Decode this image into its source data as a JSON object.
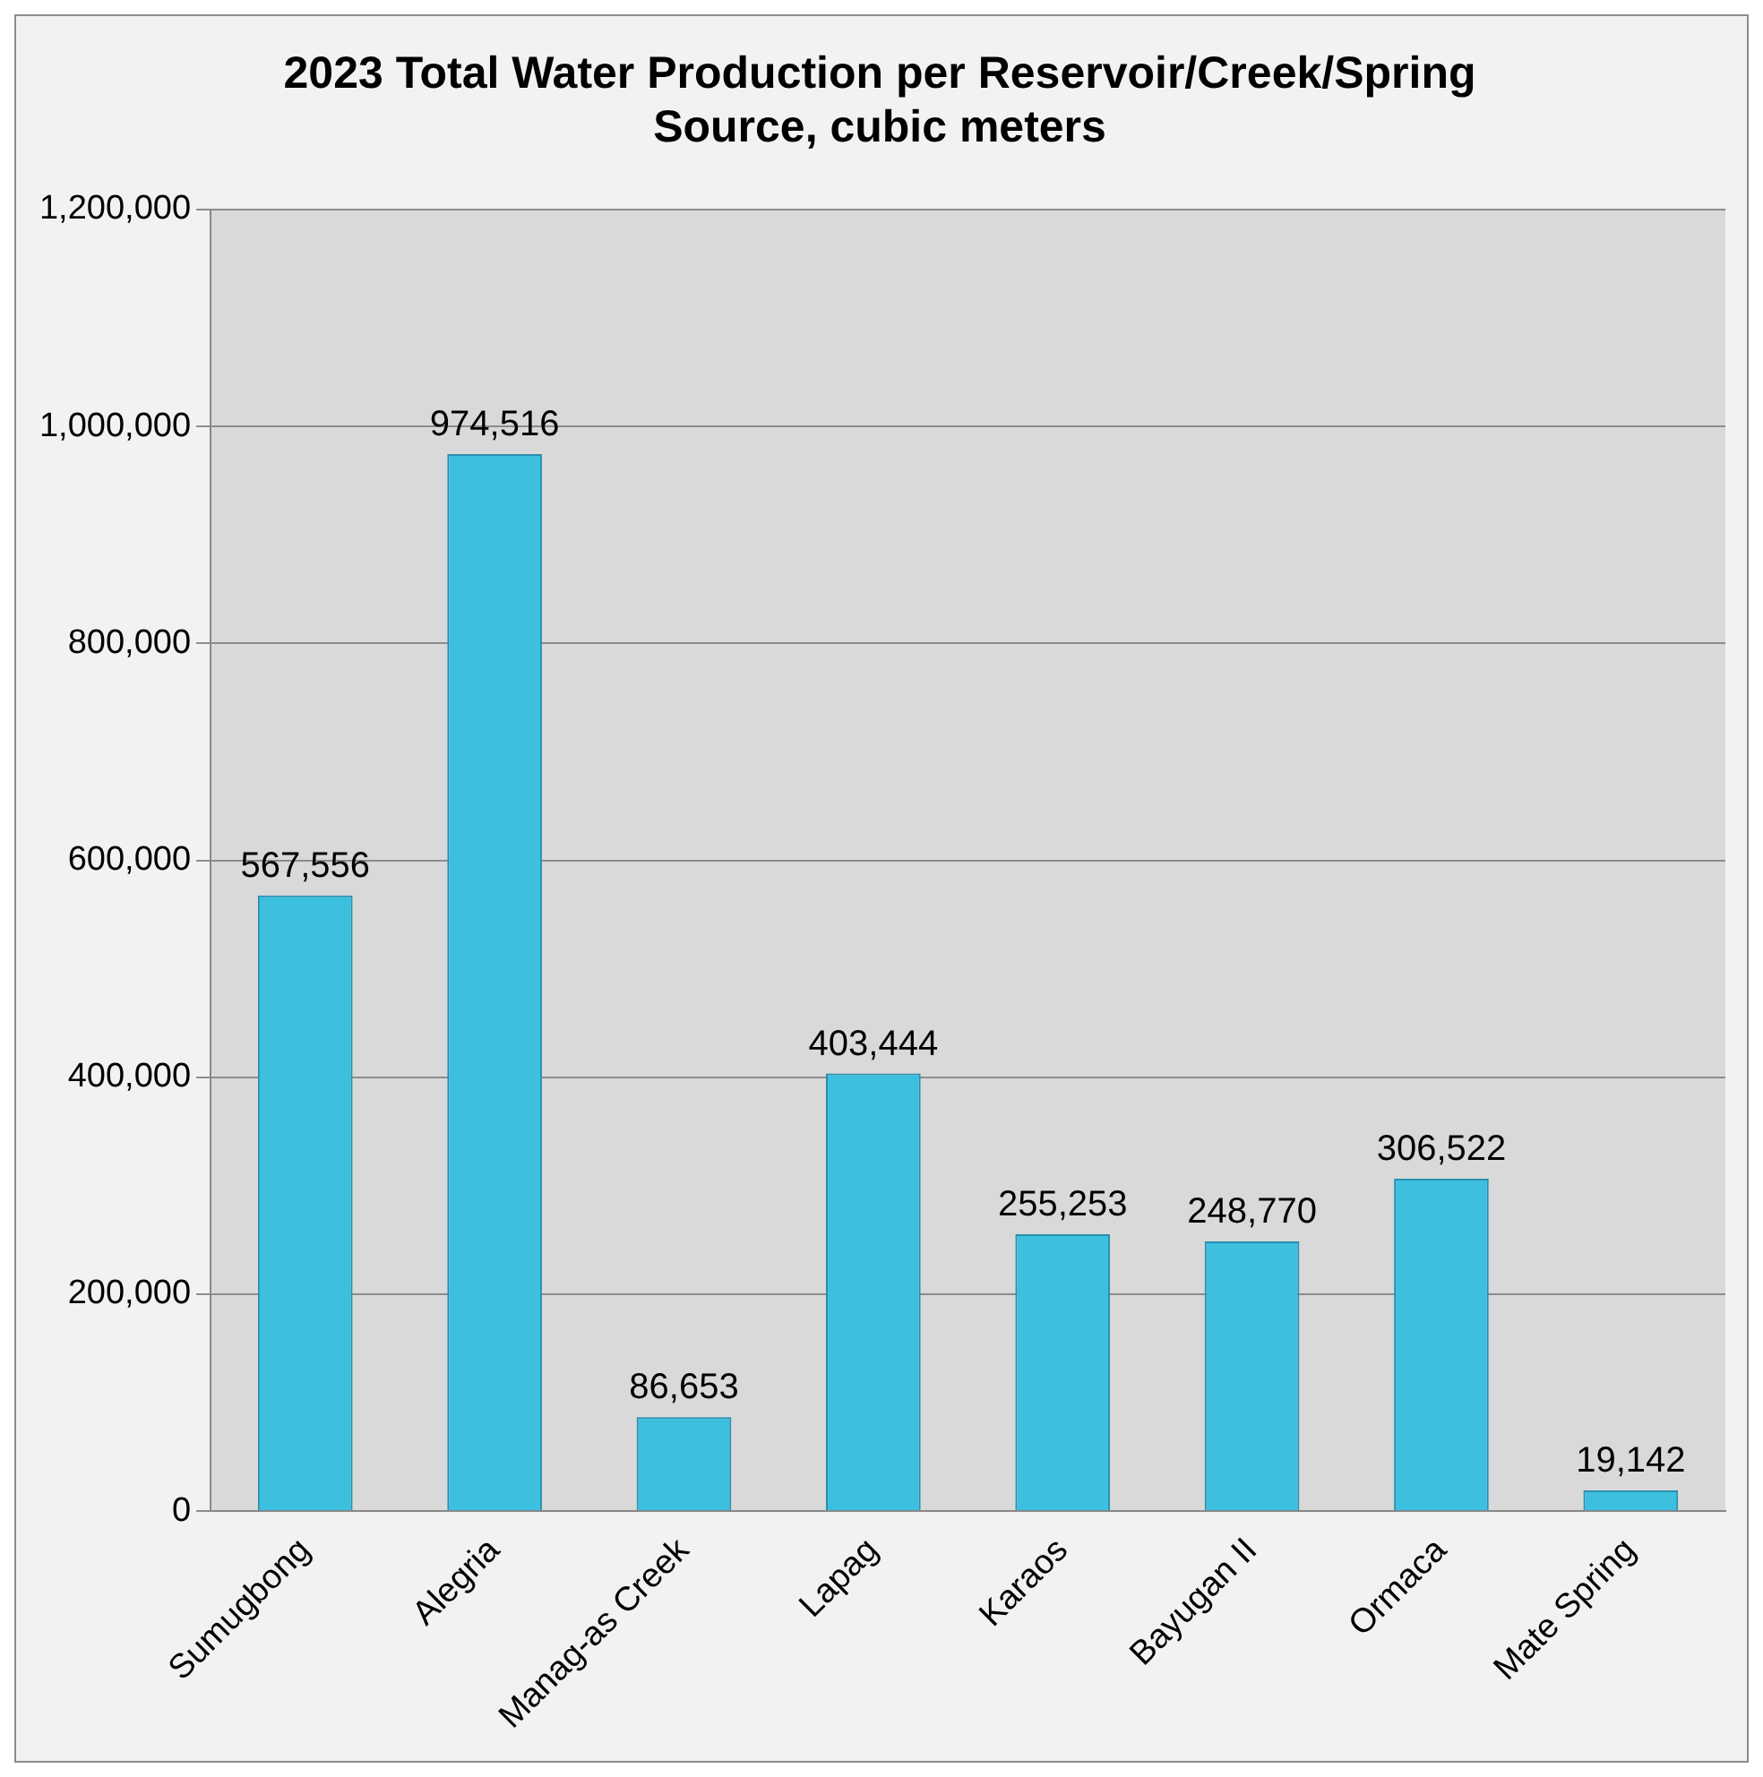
{
  "chart_data": {
    "type": "bar",
    "title": "2023 Total Water Production per Reservoir/Creek/Spring Source, cubic meters",
    "categories": [
      "Sumugbong",
      "Alegria",
      "Manag-as Creek",
      "Lapag",
      "Karaos",
      "Bayugan II",
      "Ormaca",
      "Mate Spring"
    ],
    "values": [
      567556,
      974516,
      86653,
      403444,
      255253,
      248770,
      306522,
      19142
    ],
    "color": "#3dbfe0",
    "value_labels": [
      "567,556",
      "974,516",
      "86,653",
      "403,444",
      "255,253",
      "248,770",
      "306,522",
      "19,142"
    ],
    "ylim": [
      0,
      1200000
    ],
    "yticks": [
      0,
      {
        "value": 200000,
        "label": "200,000"
      },
      {
        "value": 400000,
        "label": "400,000"
      },
      {
        "value": 600000,
        "label": "600,000"
      },
      {
        "value": 800000,
        "label": "800,000"
      },
      {
        "value": 1000000,
        "label": "1,000,000"
      },
      {
        "value": 1200000,
        "label": "1,200,000"
      }
    ],
    "grid": "y",
    "legend": false
  }
}
